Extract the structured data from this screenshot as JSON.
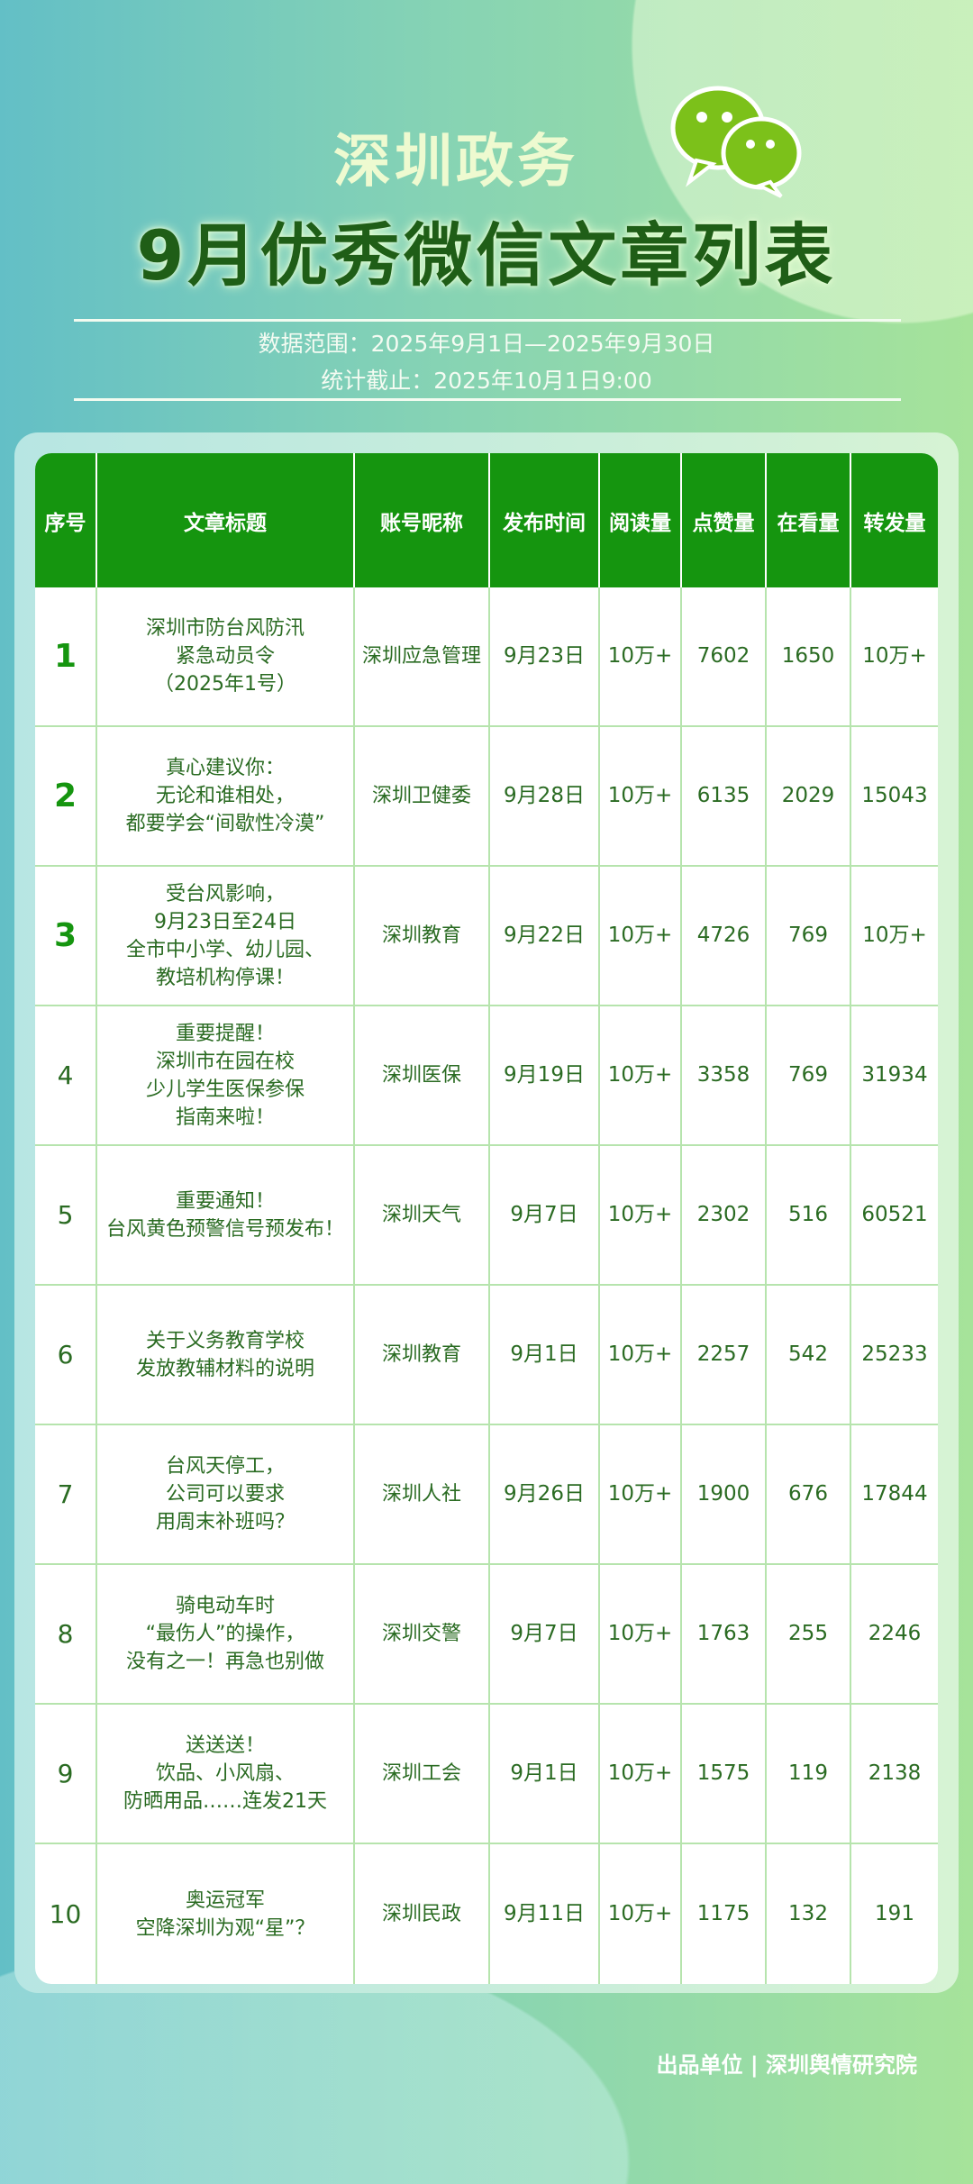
{
  "header": {
    "brand": "深圳政务",
    "title": "9月优秀微信文章列表",
    "data_range": "数据范围：2025年9月1日—2025年9月30日",
    "cutoff": "统计截止：2025年10月1日9:00",
    "logo_icon": "wechat-icon"
  },
  "table": {
    "columns": [
      "序号",
      "文章标题",
      "账号昵称",
      "发布时间",
      "阅读量",
      "点赞量",
      "在看量",
      "转发量"
    ],
    "rows": [
      {
        "rank": "1",
        "title": [
          "深圳市防台风防汛",
          "紧急动员令",
          "（2025年1号）"
        ],
        "account": "深圳应急管理",
        "date": "9月23日",
        "reads": "10万+",
        "likes": "7602",
        "watching": "1650",
        "shares": "10万+"
      },
      {
        "rank": "2",
        "title": [
          "真心建议你：",
          "无论和谁相处，",
          "都要学会“间歇性冷漠”"
        ],
        "account": "深圳卫健委",
        "date": "9月28日",
        "reads": "10万+",
        "likes": "6135",
        "watching": "2029",
        "shares": "15043"
      },
      {
        "rank": "3",
        "title": [
          "受台风影响，",
          "9月23日至24日",
          "全市中小学、幼儿园、",
          "教培机构停课！"
        ],
        "account": "深圳教育",
        "date": "9月22日",
        "reads": "10万+",
        "likes": "4726",
        "watching": "769",
        "shares": "10万+"
      },
      {
        "rank": "4",
        "title": [
          "重要提醒！",
          "深圳市在园在校",
          "少儿学生医保参保",
          "指南来啦！"
        ],
        "account": "深圳医保",
        "date": "9月19日",
        "reads": "10万+",
        "likes": "3358",
        "watching": "769",
        "shares": "31934"
      },
      {
        "rank": "5",
        "title": [
          "重要通知！",
          "台风黄色预警信号预发布！"
        ],
        "account": "深圳天气",
        "date": "9月7日",
        "reads": "10万+",
        "likes": "2302",
        "watching": "516",
        "shares": "60521"
      },
      {
        "rank": "6",
        "title": [
          "关于义务教育学校",
          "发放教辅材料的说明"
        ],
        "account": "深圳教育",
        "date": "9月1日",
        "reads": "10万+",
        "likes": "2257",
        "watching": "542",
        "shares": "25233"
      },
      {
        "rank": "7",
        "title": [
          "台风天停工，",
          "公司可以要求",
          "用周末补班吗？"
        ],
        "account": "深圳人社",
        "date": "9月26日",
        "reads": "10万+",
        "likes": "1900",
        "watching": "676",
        "shares": "17844"
      },
      {
        "rank": "8",
        "title": [
          "骑电动车时",
          "“最伤人”的操作，",
          "没有之一！再急也别做"
        ],
        "account": "深圳交警",
        "date": "9月7日",
        "reads": "10万+",
        "likes": "1763",
        "watching": "255",
        "shares": "2246"
      },
      {
        "rank": "9",
        "title": [
          "送送送！",
          "饮品、小风扇、",
          "防晒用品……连发21天"
        ],
        "account": "深圳工会",
        "date": "9月1日",
        "reads": "10万+",
        "likes": "1575",
        "watching": "119",
        "shares": "2138"
      },
      {
        "rank": "10",
        "title": [
          "奥运冠军",
          "空降深圳为观“星”？"
        ],
        "account": "深圳民政",
        "date": "9月11日",
        "reads": "10万+",
        "likes": "1175",
        "watching": "132",
        "shares": "191"
      }
    ]
  },
  "footer": {
    "text": "出品单位 | 深圳舆情研究院"
  },
  "colors": {
    "header_green": "#15950f",
    "text_green": "#2a6b22",
    "title_green": "#1f5e17"
  }
}
